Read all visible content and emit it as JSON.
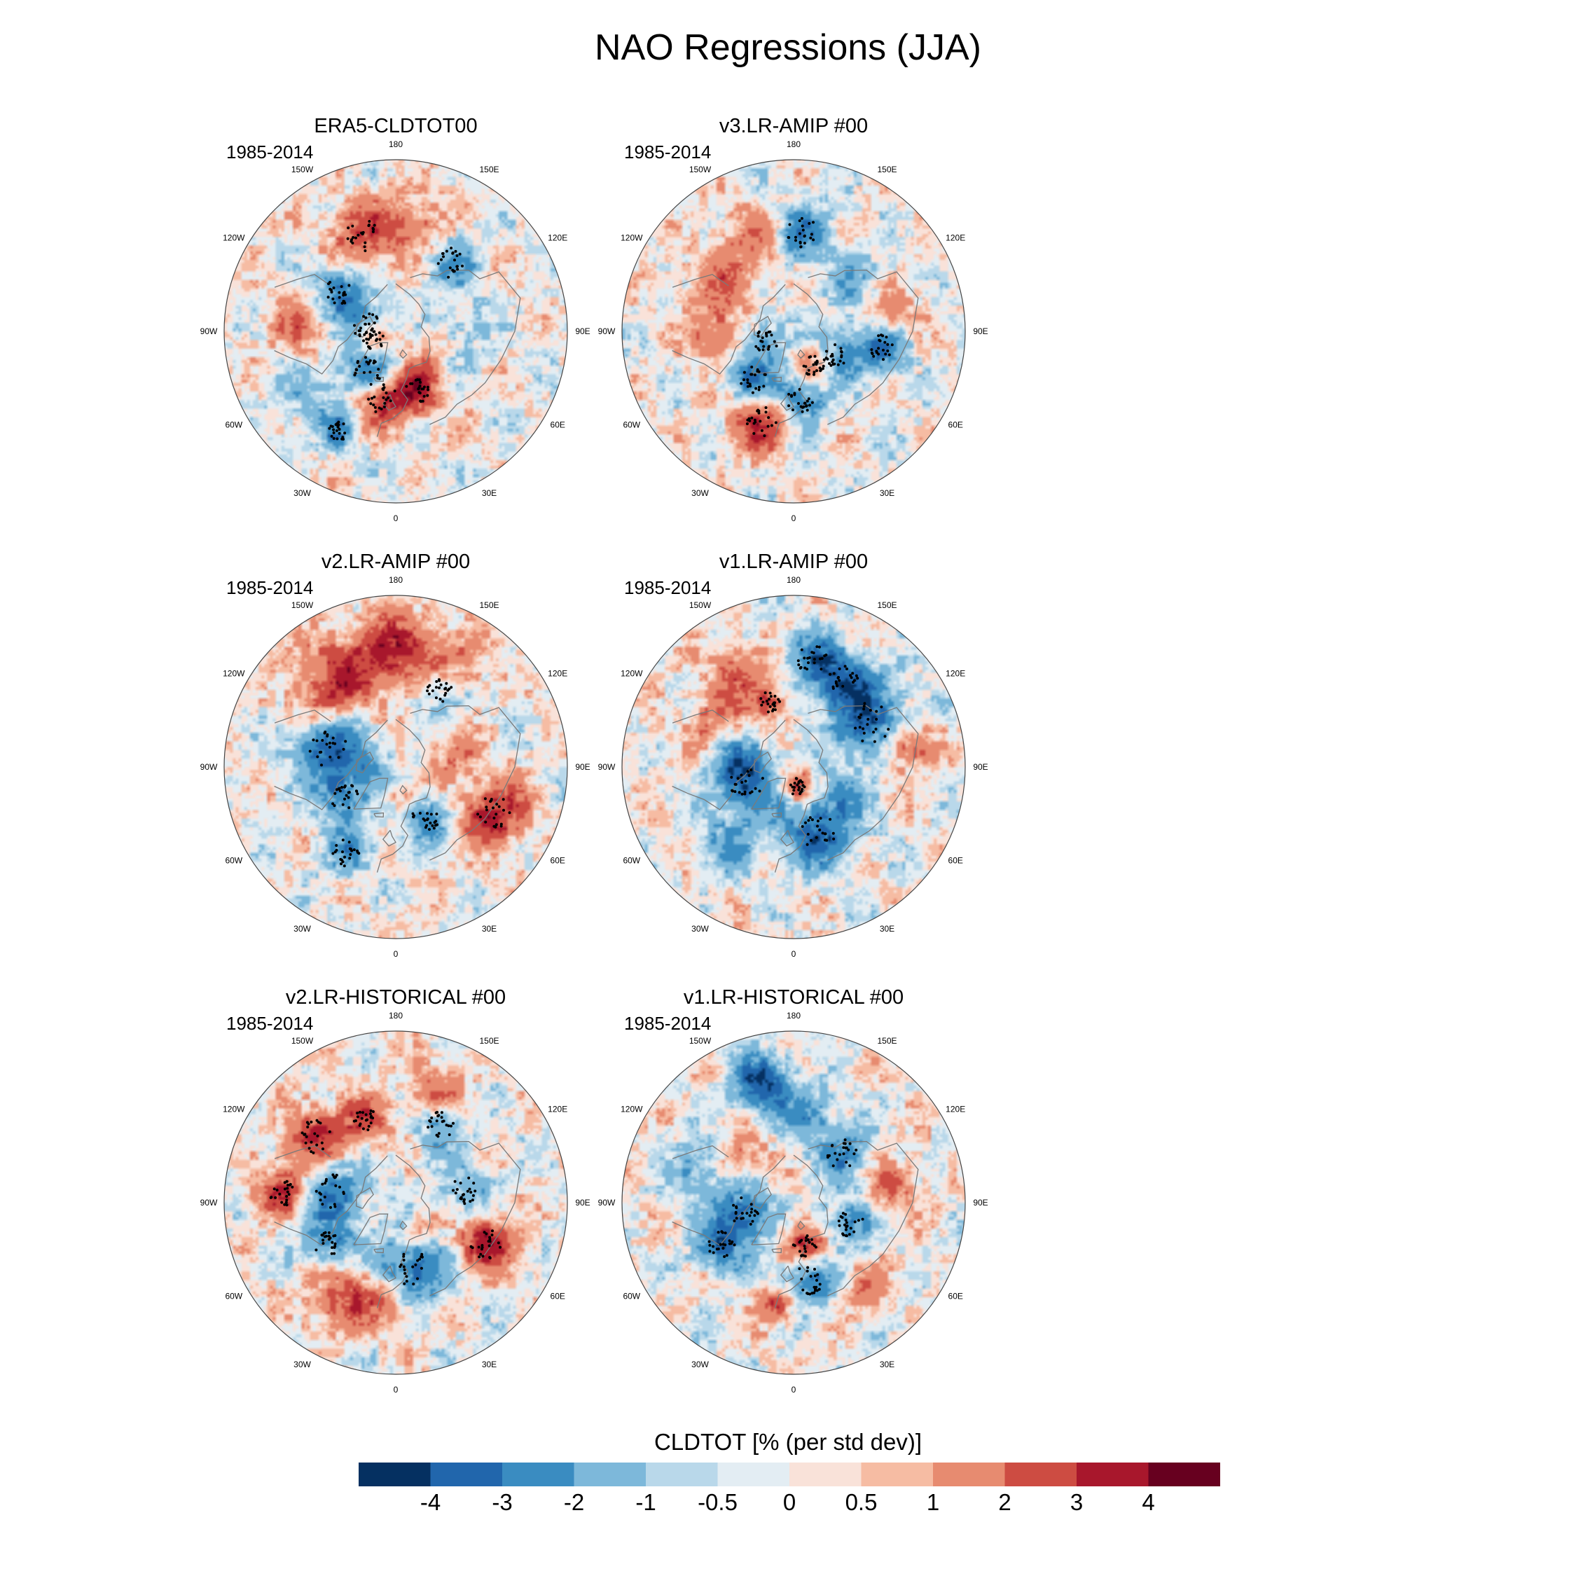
{
  "title": "NAO Regressions (JJA)",
  "chart_data": {
    "type": "heatmap",
    "projection": "north polar stereographic",
    "title": "NAO Regressions (JJA)",
    "variable_label": "CLDTOT [% (per std dev)]",
    "longitude_labels": [
      "180",
      "150E",
      "120E",
      "90E",
      "60E",
      "30E",
      "0",
      "30W",
      "60W",
      "90W",
      "120W",
      "150W"
    ],
    "colorbar": {
      "levels": [
        "-4",
        "-3",
        "-2",
        "-1",
        "-0.5",
        "0",
        "0.5",
        "1",
        "2",
        "3",
        "4"
      ],
      "colors": [
        "#053061",
        "#2166ac",
        "#3a8cc1",
        "#7db8da",
        "#b9d8ea",
        "#e3edf3",
        "#f9e2d9",
        "#f6bca3",
        "#e78b70",
        "#cd4c42",
        "#a8172c",
        "#67001f"
      ]
    },
    "panels": [
      {
        "title": "ERA5-CLDTOT00",
        "period": "1985-2014",
        "blobs": [
          {
            "lon": -10,
            "lat": 55,
            "v": 3.5,
            "r": 9,
            "dots": true
          },
          {
            "lon": 20,
            "lat": 58,
            "v": 3,
            "r": 7,
            "dots": true
          },
          {
            "lon": -35,
            "lat": 65,
            "v": -3,
            "r": 9,
            "dots": true
          },
          {
            "lon": -70,
            "lat": 78,
            "v": 3,
            "r": 6,
            "dots": true
          },
          {
            "lon": -100,
            "lat": 75,
            "v": -2.5,
            "r": 8,
            "dots": true
          },
          {
            "lon": -125,
            "lat": 55,
            "v": -3,
            "r": 8,
            "dots": true
          },
          {
            "lon": -160,
            "lat": 38,
            "v": 2.5,
            "r": 10,
            "dots": true
          },
          {
            "lon": 170,
            "lat": 35,
            "v": 2,
            "r": 10,
            "dots": false
          },
          {
            "lon": 140,
            "lat": 45,
            "v": -2,
            "r": 9,
            "dots": true
          },
          {
            "lon": -95,
            "lat": 42,
            "v": 2,
            "r": 9,
            "dots": false
          },
          {
            "lon": -55,
            "lat": 35,
            "v": -1.5,
            "r": 9,
            "dots": false
          },
          {
            "lon": 90,
            "lat": 55,
            "v": -1,
            "r": 10,
            "dots": false
          },
          {
            "lon": -30,
            "lat": 32,
            "v": -2.5,
            "r": 6,
            "dots": true
          },
          {
            "lon": 60,
            "lat": 70,
            "v": 1,
            "r": 7,
            "dots": false
          }
        ]
      },
      {
        "title": "v3.LR-AMIP  #00",
        "period": "1985-2014",
        "blobs": [
          {
            "lon": -20,
            "lat": 42,
            "v": 3.5,
            "r": 9,
            "dots": true
          },
          {
            "lon": 5,
            "lat": 55,
            "v": -3,
            "r": 8,
            "dots": true
          },
          {
            "lon": -40,
            "lat": 58,
            "v": -3,
            "r": 8,
            "dots": true
          },
          {
            "lon": 30,
            "lat": 70,
            "v": 3,
            "r": 6,
            "dots": true
          },
          {
            "lon": 60,
            "lat": 65,
            "v": -2.5,
            "r": 8,
            "dots": true
          },
          {
            "lon": 80,
            "lat": 45,
            "v": -3,
            "r": 8,
            "dots": true
          },
          {
            "lon": 175,
            "lat": 40,
            "v": -2.5,
            "r": 9,
            "dots": true
          },
          {
            "lon": -130,
            "lat": 45,
            "v": 2,
            "r": 10,
            "dots": false
          },
          {
            "lon": -90,
            "lat": 50,
            "v": 2,
            "r": 9,
            "dots": false
          },
          {
            "lon": 130,
            "lat": 50,
            "v": -1.5,
            "r": 9,
            "dots": false
          },
          {
            "lon": -70,
            "lat": 75,
            "v": -2,
            "r": 7,
            "dots": true
          },
          {
            "lon": 100,
            "lat": 40,
            "v": 2,
            "r": 8,
            "dots": false
          },
          {
            "lon": -160,
            "lat": 35,
            "v": 1.5,
            "r": 9,
            "dots": false
          }
        ]
      },
      {
        "title": "v2.LR-AMIP  #00",
        "period": "1985-2014",
        "blobs": [
          {
            "lon": 65,
            "lat": 35,
            "v": 3.5,
            "r": 10,
            "dots": true
          },
          {
            "lon": -105,
            "lat": 55,
            "v": -3.5,
            "r": 11,
            "dots": true
          },
          {
            "lon": -60,
            "lat": 60,
            "v": -2.5,
            "r": 8,
            "dots": true
          },
          {
            "lon": 30,
            "lat": 60,
            "v": -2.5,
            "r": 8,
            "dots": true
          },
          {
            "lon": 150,
            "lat": 45,
            "v": -2.5,
            "r": 8,
            "dots": true
          },
          {
            "lon": 180,
            "lat": 32,
            "v": 3,
            "r": 12,
            "dots": false
          },
          {
            "lon": -150,
            "lat": 35,
            "v": 2.5,
            "r": 12,
            "dots": false
          },
          {
            "lon": 150,
            "lat": 33,
            "v": 2,
            "r": 10,
            "dots": false
          },
          {
            "lon": -80,
            "lat": 80,
            "v": -1.5,
            "r": 6,
            "dots": false
          },
          {
            "lon": 15,
            "lat": 75,
            "v": 2,
            "r": 5,
            "dots": false
          },
          {
            "lon": -30,
            "lat": 40,
            "v": -2,
            "r": 8,
            "dots": true
          },
          {
            "lon": 100,
            "lat": 60,
            "v": 1.5,
            "r": 8,
            "dots": false
          },
          {
            "lon": -130,
            "lat": 40,
            "v": 1.5,
            "r": 8,
            "dots": false
          }
        ]
      },
      {
        "title": "v1.LR-AMIP  #00",
        "period": "1985-2014",
        "blobs": [
          {
            "lon": 20,
            "lat": 55,
            "v": -3.5,
            "r": 11,
            "dots": true
          },
          {
            "lon": -70,
            "lat": 65,
            "v": -3,
            "r": 10,
            "dots": true
          },
          {
            "lon": 120,
            "lat": 45,
            "v": -3.5,
            "r": 12,
            "dots": true
          },
          {
            "lon": 150,
            "lat": 40,
            "v": -3,
            "r": 9,
            "dots": true
          },
          {
            "lon": 10,
            "lat": 80,
            "v": 3.5,
            "r": 5,
            "dots": true
          },
          {
            "lon": 100,
            "lat": 32,
            "v": 3,
            "r": 8,
            "dots": false
          },
          {
            "lon": 170,
            "lat": 35,
            "v": -2.5,
            "r": 9,
            "dots": true
          },
          {
            "lon": -120,
            "lat": 45,
            "v": 2,
            "r": 10,
            "dots": false
          },
          {
            "lon": -150,
            "lat": 35,
            "v": 2.5,
            "r": 8,
            "dots": false
          },
          {
            "lon": -100,
            "lat": 60,
            "v": -2,
            "r": 9,
            "dots": false
          },
          {
            "lon": -40,
            "lat": 40,
            "v": -2,
            "r": 9,
            "dots": false
          },
          {
            "lon": 60,
            "lat": 60,
            "v": -1.5,
            "r": 8,
            "dots": false
          },
          {
            "lon": -160,
            "lat": 55,
            "v": 2.5,
            "r": 6,
            "dots": true
          }
        ]
      },
      {
        "title": "v2.LR-HISTORICAL  #00",
        "period": "1985-2014",
        "blobs": [
          {
            "lon": 15,
            "lat": 55,
            "v": -3.5,
            "r": 11,
            "dots": true
          },
          {
            "lon": -100,
            "lat": 58,
            "v": -3,
            "r": 10,
            "dots": true
          },
          {
            "lon": -130,
            "lat": 38,
            "v": 3,
            "r": 10,
            "dots": true
          },
          {
            "lon": -95,
            "lat": 33,
            "v": 3,
            "r": 8,
            "dots": true
          },
          {
            "lon": 65,
            "lat": 40,
            "v": 3.5,
            "r": 9,
            "dots": true
          },
          {
            "lon": -60,
            "lat": 50,
            "v": -2.5,
            "r": 8,
            "dots": true
          },
          {
            "lon": -30,
            "lat": 35,
            "v": 2.5,
            "r": 10,
            "dots": false
          },
          {
            "lon": -5,
            "lat": 40,
            "v": 2,
            "r": 8,
            "dots": false
          },
          {
            "lon": 150,
            "lat": 45,
            "v": -2.5,
            "r": 8,
            "dots": true
          },
          {
            "lon": 100,
            "lat": 55,
            "v": -2,
            "r": 8,
            "dots": true
          },
          {
            "lon": 160,
            "lat": 32,
            "v": 2,
            "r": 10,
            "dots": false
          },
          {
            "lon": -160,
            "lat": 45,
            "v": 2.5,
            "r": 7,
            "dots": true
          },
          {
            "lon": 45,
            "lat": 70,
            "v": 1.5,
            "r": 6,
            "dots": false
          }
        ]
      },
      {
        "title": "v1.LR-HISTORICAL  #00",
        "period": "1985-2014",
        "blobs": [
          {
            "lon": -165,
            "lat": 28,
            "v": -4,
            "r": 9,
            "dots": false
          },
          {
            "lon": 15,
            "lat": 68,
            "v": 3.5,
            "r": 7,
            "dots": true
          },
          {
            "lon": 10,
            "lat": 50,
            "v": -3,
            "r": 9,
            "dots": true
          },
          {
            "lon": -80,
            "lat": 65,
            "v": -3,
            "r": 9,
            "dots": true
          },
          {
            "lon": -60,
            "lat": 48,
            "v": -3,
            "r": 8,
            "dots": true
          },
          {
            "lon": 135,
            "lat": 55,
            "v": -2.5,
            "r": 9,
            "dots": true
          },
          {
            "lon": -10,
            "lat": 38,
            "v": 3,
            "r": 6,
            "dots": false
          },
          {
            "lon": 70,
            "lat": 60,
            "v": -2.5,
            "r": 8,
            "dots": true
          },
          {
            "lon": -130,
            "lat": 55,
            "v": 2,
            "r": 8,
            "dots": false
          },
          {
            "lon": 170,
            "lat": 45,
            "v": -2,
            "r": 8,
            "dots": false
          },
          {
            "lon": 100,
            "lat": 40,
            "v": 2,
            "r": 8,
            "dots": false
          },
          {
            "lon": -110,
            "lat": 40,
            "v": -2,
            "r": 9,
            "dots": false
          },
          {
            "lon": 40,
            "lat": 35,
            "v": 1.5,
            "r": 8,
            "dots": false
          }
        ]
      }
    ]
  }
}
